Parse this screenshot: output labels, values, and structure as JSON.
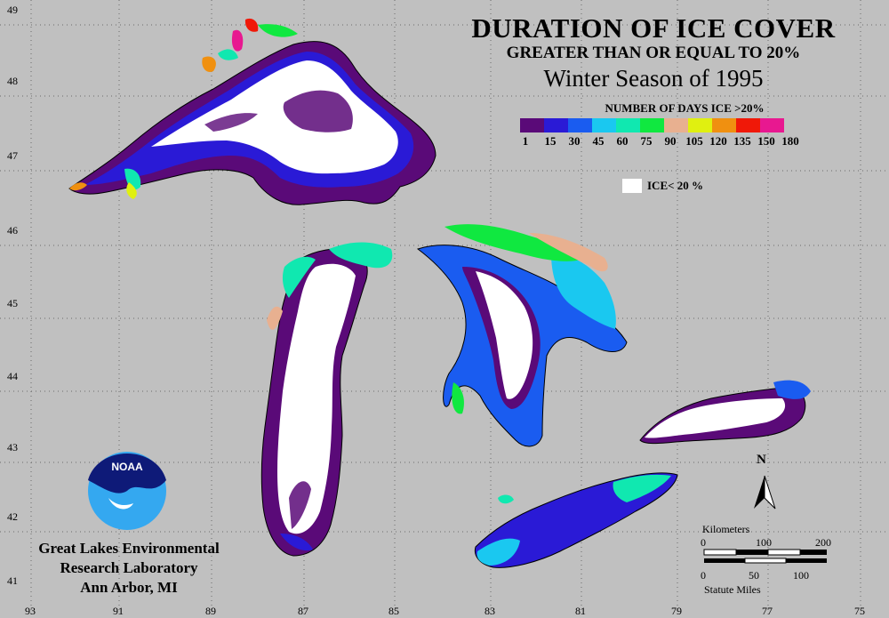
{
  "title": {
    "line1": "DURATION OF ICE COVER",
    "line2": "GREATER THAN OR EQUAL TO 20%",
    "line3": "Winter Season of 1995"
  },
  "legend": {
    "title": "NUMBER OF DAYS ICE >20%",
    "colors": [
      "#5a0a78",
      "#2a1ad6",
      "#1a5cf0",
      "#1ac8f0",
      "#10e8b0",
      "#10e840",
      "#e8b090",
      "#e0f010",
      "#f09010",
      "#f01808",
      "#e81890"
    ],
    "ticks": [
      "1",
      "15",
      "30",
      "45",
      "60",
      "75",
      "90",
      "105",
      "120",
      "135",
      "150",
      "180"
    ],
    "ice_label": "ICE< 20 %"
  },
  "axes": {
    "lon": [
      "93",
      "91",
      "89",
      "87",
      "85",
      "83",
      "81",
      "79",
      "77",
      "75"
    ],
    "lat": [
      "49",
      "48",
      "47",
      "46",
      "45",
      "44",
      "43",
      "42",
      "41"
    ]
  },
  "lab": {
    "line1": "Great Lakes Environmental",
    "line2": "Research Laboratory",
    "line3": "Ann Arbor, MI",
    "logo_text": "NOAA"
  },
  "north_label": "N",
  "scale": {
    "km_label": "Kilometers",
    "km_ticks": [
      "0",
      "100",
      "200"
    ],
    "mi_ticks": [
      "0",
      "50",
      "100"
    ],
    "mi_label": "Statute Miles"
  }
}
